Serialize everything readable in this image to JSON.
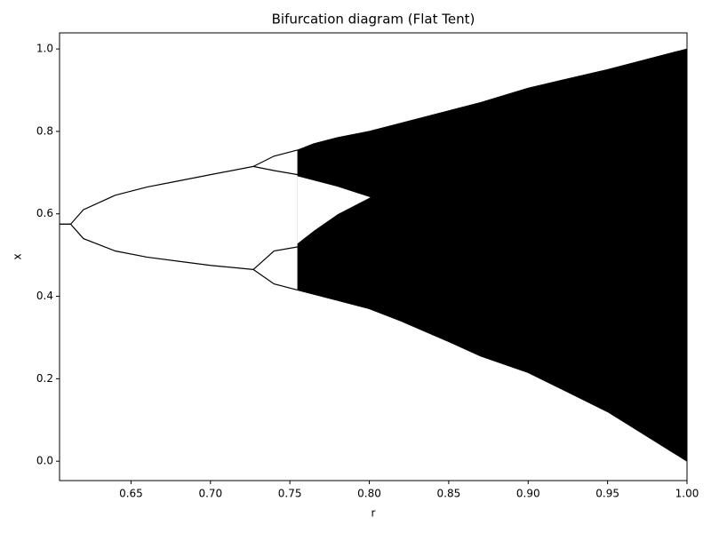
{
  "chart_data": {
    "type": "bifurcation",
    "title": "Bifurcation diagram (Flat Tent)",
    "x_label": "r",
    "y_label": "x",
    "xlim": [
      0.605,
      1.0
    ],
    "ylim": [
      -0.047,
      1.039
    ],
    "xticks": [
      0.65,
      {
        "value": 0.7,
        "label": "0.70"
      },
      0.75,
      {
        "value": 0.8,
        "label": "0.80"
      },
      0.85,
      {
        "value": 0.9,
        "label": "0.90"
      },
      0.95,
      {
        "value": 1.0,
        "label": "1.00"
      }
    ],
    "yticks": [
      {
        "value": 0,
        "label": "0.0"
      },
      0.2,
      0.4,
      0.6,
      0.8,
      {
        "value": 1.0,
        "label": "1.0"
      }
    ],
    "x": [
      0.605,
      0.612,
      0.62,
      0.64,
      0.66,
      0.68,
      0.7,
      0.727,
      0.74,
      0.755,
      0.765,
      0.78,
      0.8,
      0.82,
      0.85,
      0.87,
      0.9,
      0.95,
      1.0
    ],
    "series": [
      {
        "color": "#000000",
        "values": [
          0.575,
          0.575,
          0.61,
          0.645,
          0.665,
          0.68,
          0.695,
          0.715,
          null,
          null,
          null,
          null,
          null,
          null,
          null,
          null,
          null,
          null,
          null
        ]
      },
      {
        "color": "#000000",
        "values": [
          0.575,
          0.575,
          0.54,
          0.51,
          0.495,
          0.485,
          0.475,
          0.465,
          null,
          null,
          null,
          null,
          null,
          null,
          null,
          null,
          null,
          null,
          null
        ]
      },
      {
        "color": "#000000",
        "values": [
          null,
          null,
          null,
          null,
          null,
          null,
          null,
          0.715,
          0.74,
          0.755,
          null,
          null,
          null,
          null,
          null,
          null,
          null,
          null,
          null
        ]
      },
      {
        "color": "#000000",
        "values": [
          null,
          null,
          null,
          null,
          null,
          null,
          null,
          0.715,
          0.705,
          0.695,
          null,
          null,
          null,
          null,
          null,
          null,
          null,
          null,
          null
        ]
      },
      {
        "color": "#000000",
        "values": [
          null,
          null,
          null,
          null,
          null,
          null,
          null,
          0.465,
          0.51,
          0.52,
          null,
          null,
          null,
          null,
          null,
          null,
          null,
          null,
          null
        ]
      },
      {
        "color": "#000000",
        "values": [
          null,
          null,
          null,
          null,
          null,
          null,
          null,
          0.465,
          0.43,
          0.415,
          null,
          null,
          null,
          null,
          null,
          null,
          null,
          null,
          null
        ]
      }
    ],
    "bands": [
      {
        "color": "#000000",
        "values": [
          null,
          null,
          null,
          null,
          null,
          null,
          null,
          null,
          null,
          0.755,
          0.77,
          0.785,
          0.8,
          0.82,
          0.85,
          0.87,
          0.905,
          0.95,
          1.0
        ],
        "low": [
          null,
          null,
          null,
          null,
          null,
          null,
          null,
          null,
          null,
          0.415,
          0.405,
          0.39,
          0.37,
          0.34,
          0.29,
          0.255,
          0.215,
          0.12,
          0.0
        ]
      },
      {
        "color": "#ffffff",
        "values": [
          null,
          null,
          null,
          null,
          null,
          null,
          null,
          null,
          null,
          0.69,
          0.68,
          0.665,
          0.64,
          null,
          null,
          null,
          null,
          null,
          null
        ],
        "low": [
          null,
          null,
          null,
          null,
          null,
          null,
          null,
          null,
          null,
          0.53,
          0.56,
          0.6,
          0.64,
          null,
          null,
          null,
          null,
          null,
          null
        ]
      }
    ]
  }
}
